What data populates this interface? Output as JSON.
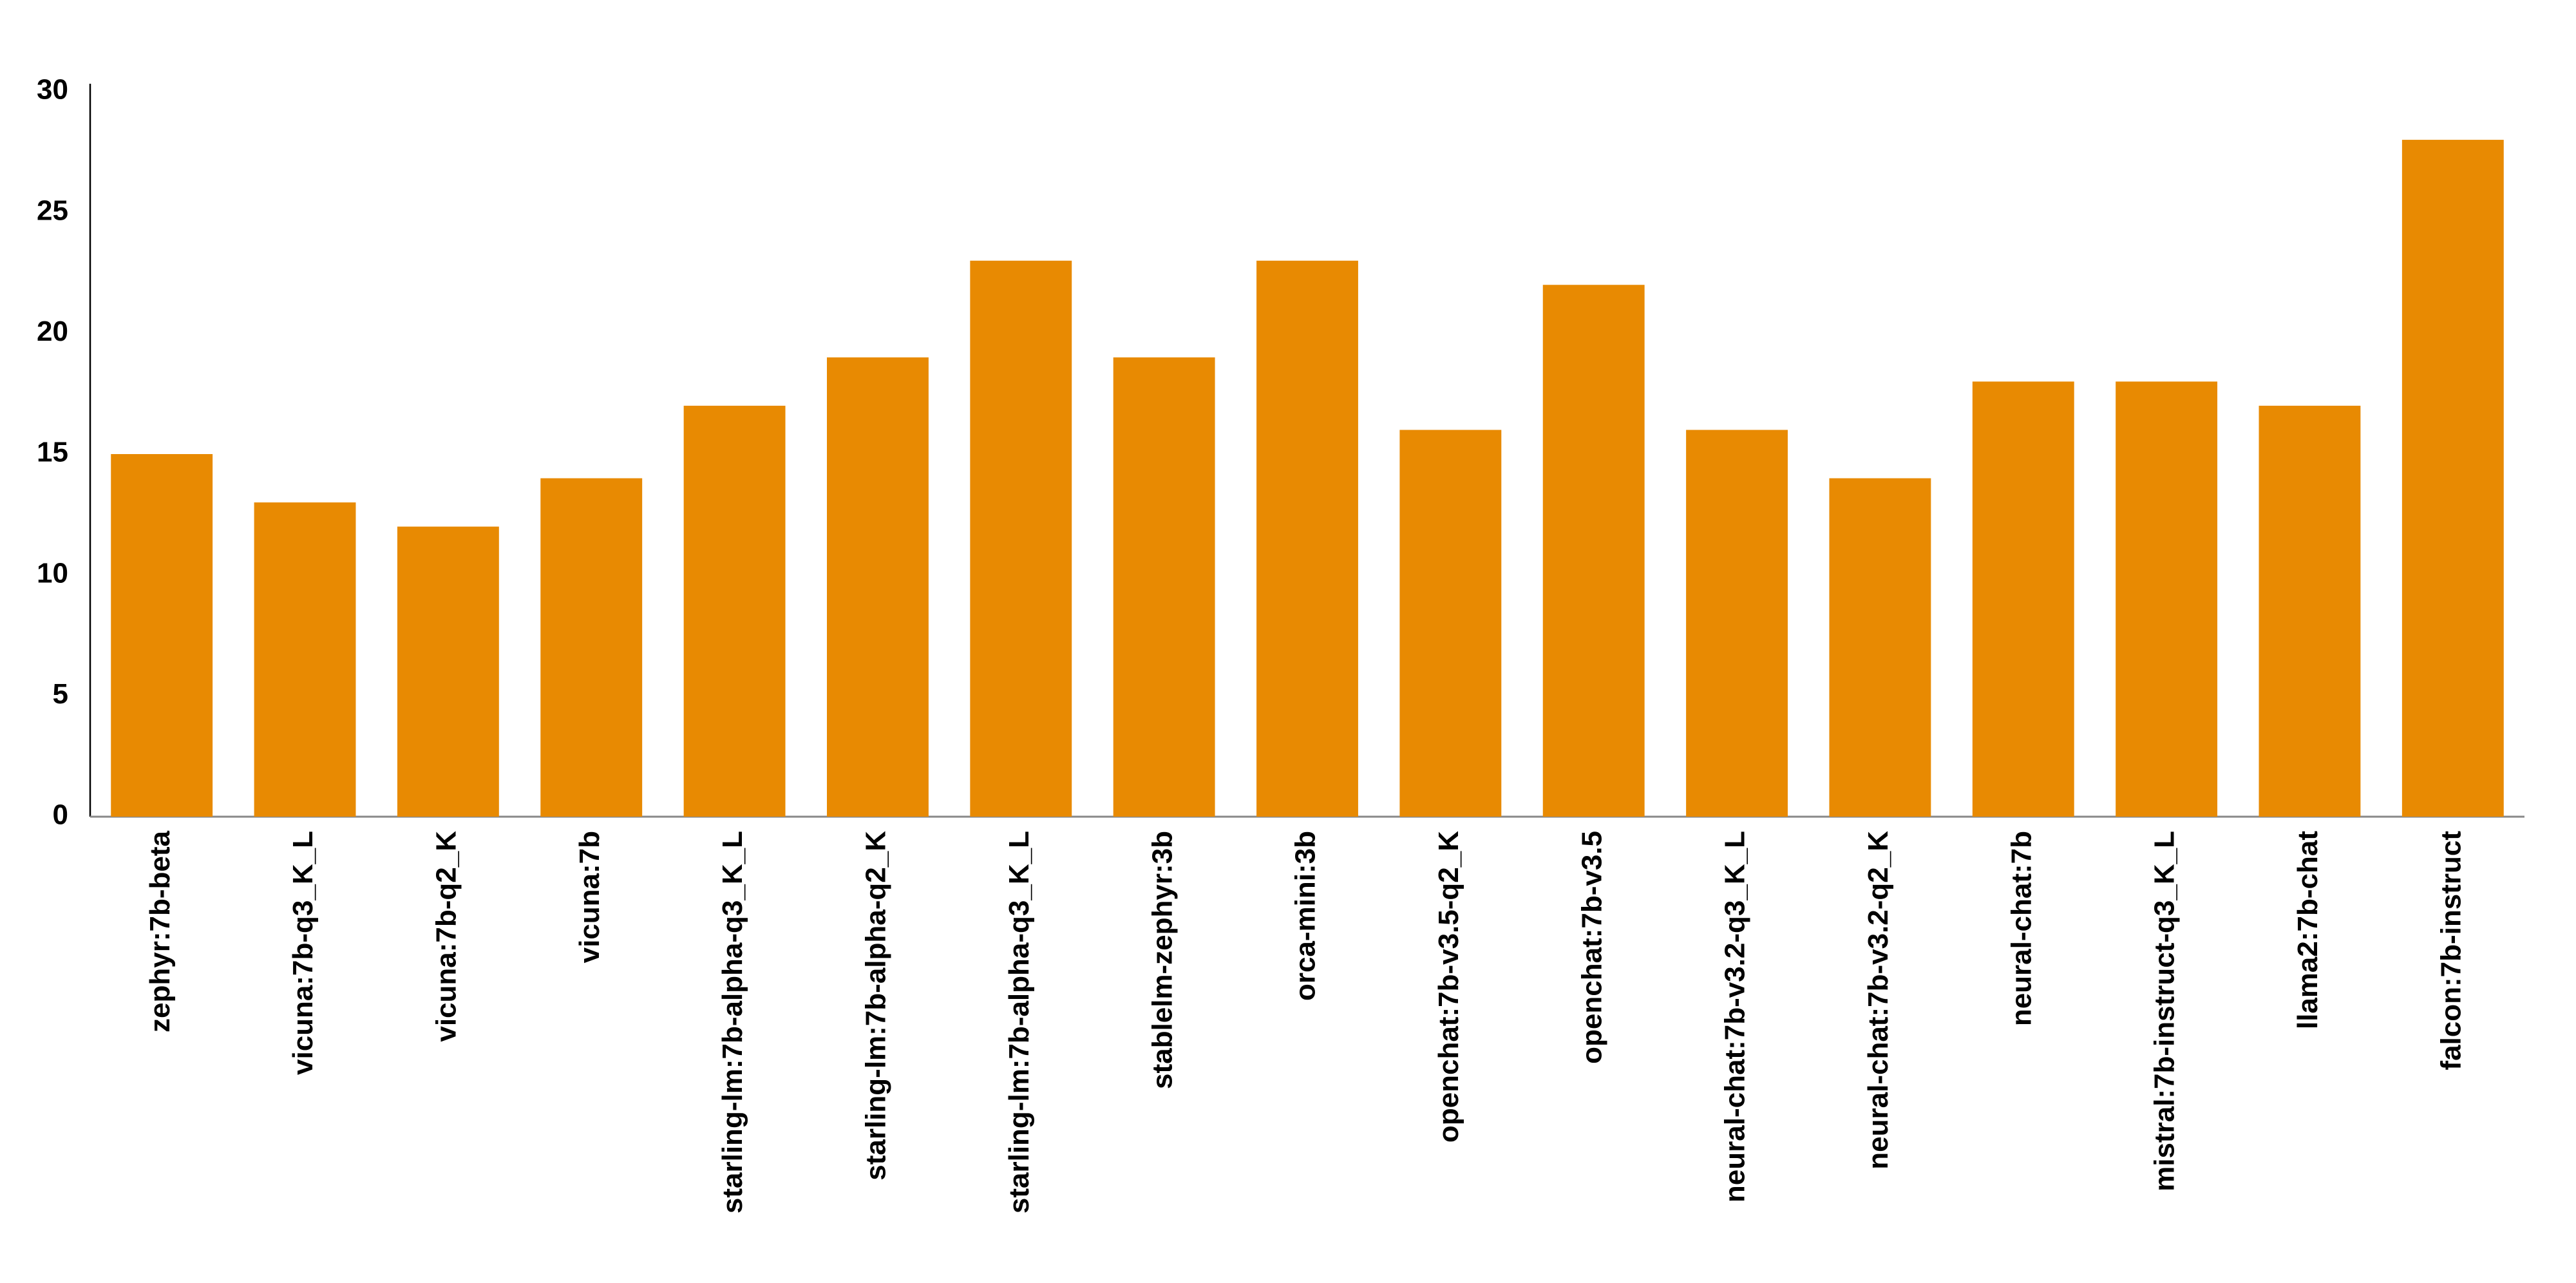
{
  "chart_data": {
    "type": "bar",
    "categories": [
      "zephyr:7b-beta",
      "vicuna:7b-q3_K_L",
      "vicuna:7b-q2_K",
      "vicuna:7b",
      "starling-lm:7b-alpha-q3_K_L",
      "starling-lm:7b-alpha-q2_K",
      "starling-lm:7b-alpha-q3_K_L",
      "stablelm-zephyr:3b",
      "orca-mini:3b",
      "openchat:7b-v3.5-q2_K",
      "openchat:7b-v3.5",
      "neural-chat:7b-v3.2-q3_K_L",
      "neural-chat:7b-v3.2-q2_K",
      "neural-chat:7b",
      "mistral:7b-instruct-q3_K_L",
      "llama2:7b-chat",
      "falcon:7b-instruct"
    ],
    "values": [
      15,
      13,
      12,
      14,
      17,
      19,
      23,
      19,
      23,
      16,
      22,
      16,
      14,
      18,
      18,
      17,
      28
    ],
    "color": "#e88a02",
    "ylim": [
      0,
      30
    ],
    "yticks": [
      0,
      5,
      10,
      15,
      20,
      25,
      30
    ],
    "grid": false
  }
}
